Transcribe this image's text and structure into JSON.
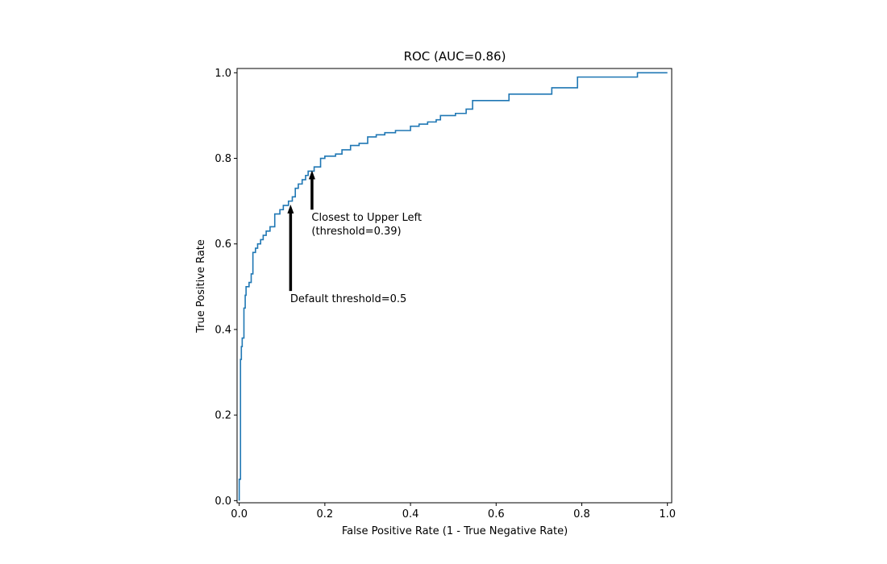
{
  "chart_data": {
    "type": "line",
    "title": "ROC (AUC=0.86)",
    "xlabel": "False Positive Rate (1 - True Negative Rate)",
    "ylabel": "True Positive Rate",
    "xlim": [
      -0.005,
      1.01
    ],
    "ylim": [
      -0.005,
      1.01
    ],
    "xticks": [
      0.0,
      0.2,
      0.4,
      0.6,
      0.8,
      1.0
    ],
    "xtick_labels": [
      "0.0",
      "0.2",
      "0.4",
      "0.6",
      "0.8",
      "1.0"
    ],
    "yticks": [
      0.0,
      0.2,
      0.4,
      0.6,
      0.8,
      1.0
    ],
    "ytick_labels": [
      "0.0",
      "0.2",
      "0.4",
      "0.6",
      "0.8",
      "1.0"
    ],
    "grid": false,
    "line_color": "#1f77b4",
    "series": [
      {
        "step": "post",
        "points": [
          [
            0.0,
            0.0
          ],
          [
            0.0,
            0.05
          ],
          [
            0.003,
            0.05
          ],
          [
            0.003,
            0.33
          ],
          [
            0.005,
            0.33
          ],
          [
            0.005,
            0.36
          ],
          [
            0.007,
            0.36
          ],
          [
            0.007,
            0.38
          ],
          [
            0.011,
            0.38
          ],
          [
            0.011,
            0.45
          ],
          [
            0.014,
            0.45
          ],
          [
            0.014,
            0.48
          ],
          [
            0.016,
            0.48
          ],
          [
            0.016,
            0.5
          ],
          [
            0.023,
            0.5
          ],
          [
            0.023,
            0.51
          ],
          [
            0.028,
            0.51
          ],
          [
            0.028,
            0.53
          ],
          [
            0.032,
            0.53
          ],
          [
            0.032,
            0.58
          ],
          [
            0.038,
            0.58
          ],
          [
            0.038,
            0.59
          ],
          [
            0.043,
            0.59
          ],
          [
            0.043,
            0.6
          ],
          [
            0.05,
            0.6
          ],
          [
            0.05,
            0.61
          ],
          [
            0.056,
            0.61
          ],
          [
            0.056,
            0.62
          ],
          [
            0.063,
            0.62
          ],
          [
            0.063,
            0.63
          ],
          [
            0.072,
            0.63
          ],
          [
            0.072,
            0.64
          ],
          [
            0.083,
            0.64
          ],
          [
            0.083,
            0.67
          ],
          [
            0.095,
            0.67
          ],
          [
            0.095,
            0.68
          ],
          [
            0.103,
            0.68
          ],
          [
            0.103,
            0.69
          ],
          [
            0.115,
            0.69
          ],
          [
            0.115,
            0.7
          ],
          [
            0.124,
            0.7
          ],
          [
            0.124,
            0.71
          ],
          [
            0.131,
            0.71
          ],
          [
            0.131,
            0.73
          ],
          [
            0.138,
            0.73
          ],
          [
            0.138,
            0.74
          ],
          [
            0.147,
            0.74
          ],
          [
            0.147,
            0.75
          ],
          [
            0.155,
            0.75
          ],
          [
            0.155,
            0.76
          ],
          [
            0.161,
            0.76
          ],
          [
            0.161,
            0.77
          ],
          [
            0.175,
            0.77
          ],
          [
            0.175,
            0.78
          ],
          [
            0.19,
            0.78
          ],
          [
            0.19,
            0.8
          ],
          [
            0.2,
            0.8
          ],
          [
            0.2,
            0.805
          ],
          [
            0.225,
            0.805
          ],
          [
            0.225,
            0.81
          ],
          [
            0.24,
            0.81
          ],
          [
            0.24,
            0.82
          ],
          [
            0.26,
            0.82
          ],
          [
            0.26,
            0.83
          ],
          [
            0.28,
            0.83
          ],
          [
            0.28,
            0.835
          ],
          [
            0.3,
            0.835
          ],
          [
            0.3,
            0.85
          ],
          [
            0.32,
            0.85
          ],
          [
            0.32,
            0.855
          ],
          [
            0.34,
            0.855
          ],
          [
            0.34,
            0.86
          ],
          [
            0.365,
            0.86
          ],
          [
            0.365,
            0.865
          ],
          [
            0.4,
            0.865
          ],
          [
            0.4,
            0.875
          ],
          [
            0.42,
            0.875
          ],
          [
            0.42,
            0.88
          ],
          [
            0.44,
            0.88
          ],
          [
            0.44,
            0.885
          ],
          [
            0.46,
            0.885
          ],
          [
            0.46,
            0.89
          ],
          [
            0.47,
            0.89
          ],
          [
            0.47,
            0.9
          ],
          [
            0.505,
            0.9
          ],
          [
            0.505,
            0.905
          ],
          [
            0.53,
            0.905
          ],
          [
            0.53,
            0.915
          ],
          [
            0.545,
            0.915
          ],
          [
            0.545,
            0.935
          ],
          [
            0.63,
            0.935
          ],
          [
            0.63,
            0.95
          ],
          [
            0.73,
            0.95
          ],
          [
            0.73,
            0.965
          ],
          [
            0.79,
            0.965
          ],
          [
            0.79,
            0.99
          ],
          [
            0.93,
            0.99
          ],
          [
            0.93,
            1.0
          ],
          [
            1.0,
            1.0
          ]
        ]
      }
    ],
    "annotations": [
      {
        "text": "Closest to Upper Left\n(threshold=0.39)",
        "xy": [
          0.17,
          0.77
        ],
        "xytext": [
          0.17,
          0.68
        ]
      },
      {
        "text": "Default threshold=0.5",
        "xy": [
          0.12,
          0.69
        ],
        "xytext": [
          0.12,
          0.49
        ]
      }
    ]
  }
}
